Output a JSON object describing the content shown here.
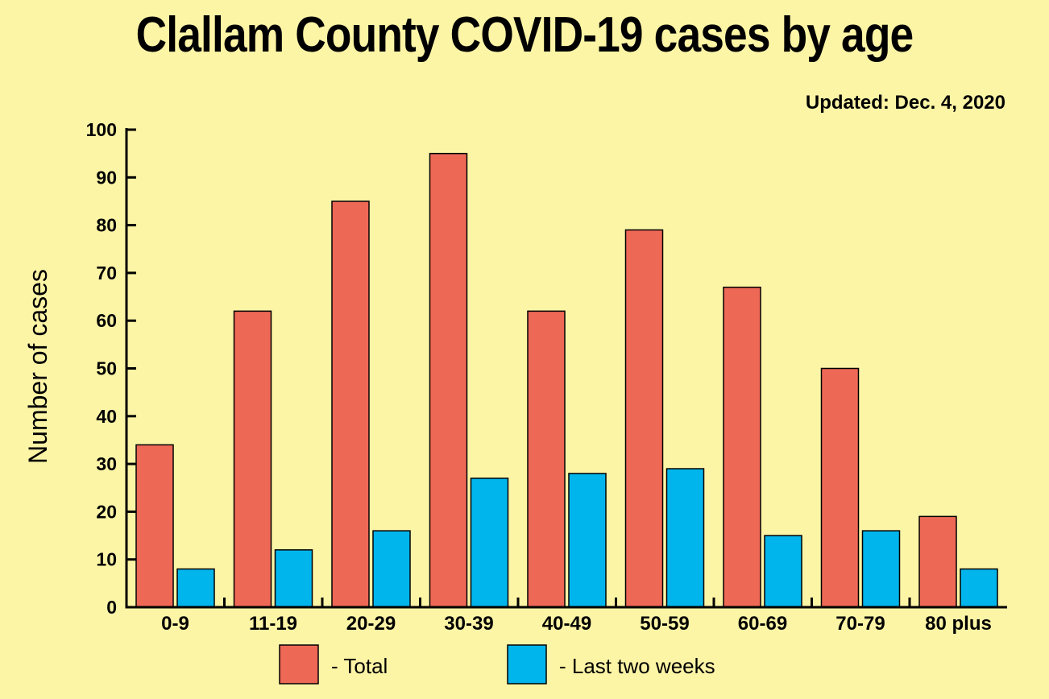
{
  "chart_data": {
    "type": "bar",
    "title": "Clallam County COVID-19 cases by age",
    "subtitle": "Updated: Dec. 4, 2020",
    "xlabel": "",
    "ylabel": "Number of cases",
    "ylim": [
      0,
      100
    ],
    "yticks": [
      0,
      10,
      20,
      30,
      40,
      50,
      60,
      70,
      80,
      90,
      100
    ],
    "categories": [
      "0-9",
      "11-19",
      "20-29",
      "30-39",
      "40-49",
      "50-59",
      "60-69",
      "70-79",
      "80 plus"
    ],
    "series": [
      {
        "name": "- Total",
        "color": "#EE6856",
        "values": [
          34,
          62,
          85,
          95,
          62,
          79,
          67,
          50,
          19
        ]
      },
      {
        "name": "- Last two weeks",
        "color": "#00B5EC",
        "values": [
          8,
          12,
          16,
          27,
          28,
          29,
          15,
          16,
          8
        ]
      }
    ],
    "grid": false,
    "legend": "bottom"
  }
}
